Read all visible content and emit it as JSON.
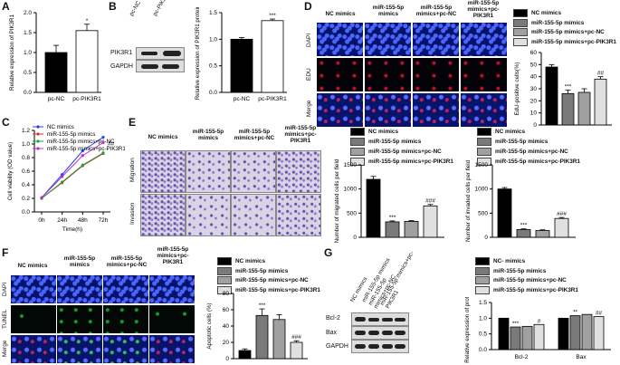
{
  "panels": {
    "A": {
      "label": "A",
      "ylabel": "Relative expression of PIK3R1",
      "categories": [
        "pc-NC",
        "pc-PIK3R1"
      ],
      "sig": "*"
    },
    "B": {
      "label": "B",
      "lanes": [
        "pc-NC",
        "pc-PIK3R1"
      ],
      "rows": [
        "PIK3R1",
        "GAPDH"
      ],
      "ylabel": "Relative expression of PIK3R1 protein",
      "categories": [
        "pc-NC",
        "pc-PIK3R1"
      ],
      "sig": "***"
    },
    "C": {
      "label": "C",
      "ylabel": "Cell viability (OD value)",
      "xlabel": "Time(h)",
      "sig": "##"
    },
    "D": {
      "label": "D",
      "columns": [
        "NC mimics",
        "miR-155-5p mimics",
        "miR-155-5p mimics+pc-NC",
        "miR-155-5p mimics+pc-PIK3R1"
      ],
      "rows": [
        "DAPI",
        "EDU",
        "Merge"
      ],
      "ylabel": "EdU-positive cells(%)",
      "sigs": [
        "",
        "***",
        "",
        "##"
      ]
    },
    "E": {
      "label": "E",
      "columns": [
        "NC mimics",
        "miR-155-5p mimics",
        "miR-155-5p mimics+pc-NC",
        "miR-155-5p mimics+pc-PIK3R1"
      ],
      "rows": [
        "Migration",
        "Invasion"
      ],
      "ylabel1": "Number of migrated cells per field",
      "ylabel2": "Number of invaded cells per field",
      "sigs": [
        "",
        "***",
        "",
        "###"
      ]
    },
    "F": {
      "label": "F",
      "columns": [
        "NC mimics",
        "miR-155-5p mimics",
        "miR-155-5p mimics+pc-NC",
        "miR-155-5p mimics+pc-PIK3R1"
      ],
      "rows": [
        "DAPI",
        "TUNEL",
        "Merge"
      ],
      "ylabel": "Apoptotic cells (%)",
      "sigs": [
        "",
        "***",
        "",
        "###"
      ]
    },
    "G": {
      "label": "G",
      "lanes": [
        "NC mimics",
        "miR-155-5p mimics",
        "miR-155-5p mimics+pc-NC",
        "miR-155-5p mimics+pc-PIK3R1"
      ],
      "rows": [
        "Bcl-2",
        "Bax",
        "GAPDH"
      ],
      "ylabel": "Relative expression of protein",
      "sigs_bcl2": [
        "",
        "***",
        "",
        "#"
      ],
      "sigs_bax": [
        "",
        "**",
        "",
        "##"
      ]
    }
  },
  "legend4": [
    "NC mimics",
    "miR-155-5p mimics",
    "miR-155-5p mimics+pc-NC",
    "miR-155-5p mimics+pc-PIK3R1"
  ],
  "legendG": [
    "NC- mimics",
    "miR-155-5p mimics",
    "miR-155-5p mimics+pc-NC",
    "miR-155-5p mimics+pc-PIK3R1"
  ],
  "colors": {
    "g1": "#000000",
    "g2": "#7a7a7a",
    "g3": "#a0a0a0",
    "g4": "#e0e0e0",
    "lineNC": "#2040ff",
    "lineMiR": "#e03020",
    "linePcNC": "#20a040",
    "linePcPIK": "#c030c0"
  },
  "chart_data": [
    {
      "type": "bar",
      "panel": "A",
      "categories": [
        "pc-NC",
        "pc-PIK3R1"
      ],
      "values": [
        1.0,
        1.55
      ],
      "errors": [
        0.18,
        0.16
      ],
      "ylabel": "Relative expression of PIK3R1",
      "ylim": [
        0,
        2.0
      ],
      "yticks": [
        0.0,
        0.5,
        1.0,
        1.5,
        2.0
      ]
    },
    {
      "type": "bar",
      "panel": "B",
      "categories": [
        "pc-NC",
        "pc-PIK3R1"
      ],
      "values": [
        1.0,
        1.35
      ],
      "errors": [
        0.03,
        0.03
      ],
      "ylabel": "Relative expression of PIK3R1 protein",
      "ylim": [
        0,
        1.5
      ],
      "yticks": [
        0.0,
        0.5,
        1.0,
        1.5
      ]
    },
    {
      "type": "line",
      "panel": "C",
      "x": [
        "0h",
        "24h",
        "48h",
        "72h"
      ],
      "ylim": [
        0,
        1.2
      ],
      "yticks": [
        0.0,
        0.2,
        0.4,
        0.6,
        0.8,
        1.0,
        1.2
      ],
      "series": [
        {
          "name": "NC mimics",
          "values": [
            0.21,
            0.55,
            0.9,
            1.1
          ]
        },
        {
          "name": "miR-155-5p mimics",
          "values": [
            0.2,
            0.43,
            0.68,
            0.86
          ]
        },
        {
          "name": "miR-155-5p mimics+pc-NC",
          "values": [
            0.2,
            0.44,
            0.69,
            0.87
          ]
        },
        {
          "name": "miR-155-5p mimics+pc-PIK3R1",
          "values": [
            0.21,
            0.52,
            0.83,
            1.02
          ]
        }
      ],
      "ylabel": "Cell viability (OD value)",
      "xlabel": "Time(h)"
    },
    {
      "type": "bar",
      "panel": "D",
      "categories": [
        "NC mimics",
        "miR-155-5p mimics",
        "miR-155-5p mimics+pc-NC",
        "miR-155-5p mimics+pc-PIK3R1"
      ],
      "values": [
        48,
        26,
        27,
        38
      ],
      "errors": [
        2,
        3,
        3,
        2
      ],
      "ylim": [
        0,
        60
      ],
      "yticks": [
        0,
        10,
        20,
        30,
        40,
        50,
        60
      ],
      "ylabel": "EdU-positive cells(%)"
    },
    {
      "type": "bar",
      "panel": "E1",
      "categories": [
        "NC mimics",
        "miR-155-5p mimics",
        "miR-155-5p mimics+pc-NC",
        "miR-155-5p mimics+pc-PIK3R1"
      ],
      "values": [
        1200,
        320,
        330,
        650
      ],
      "errors": [
        60,
        20,
        15,
        30
      ],
      "ylim": [
        0,
        1500
      ],
      "yticks": [
        0,
        500,
        1000,
        1500
      ],
      "ylabel": "Number of migrated cells per field"
    },
    {
      "type": "bar",
      "panel": "E2",
      "categories": [
        "NC mimics",
        "miR-155-5p mimics",
        "miR-155-5p mimics+pc-NC",
        "miR-155-5p mimics+pc-PIK3R1"
      ],
      "values": [
        1000,
        160,
        140,
        390
      ],
      "errors": [
        30,
        15,
        15,
        20
      ],
      "ylim": [
        0,
        1500
      ],
      "yticks": [
        0,
        500,
        1000,
        1500
      ],
      "ylabel": "Number of invaded cells per field"
    },
    {
      "type": "bar",
      "panel": "F",
      "categories": [
        "NC mimics",
        "miR-155-5p mimics",
        "miR-155-5p mimics+pc-NC",
        "miR-155-5p mimics+pc-PIK3R1"
      ],
      "values": [
        10,
        53,
        48,
        20
      ],
      "errors": [
        2,
        8,
        6,
        2
      ],
      "ylim": [
        0,
        80
      ],
      "yticks": [
        0,
        20,
        40,
        60,
        80
      ],
      "ylabel": "Apoptotic cells (%)"
    },
    {
      "type": "bar",
      "panel": "G",
      "categories": [
        "Bcl-2",
        "Bax"
      ],
      "series": [
        {
          "name": "NC- mimics",
          "values": [
            1.0,
            1.0
          ]
        },
        {
          "name": "miR-155-5p mimics",
          "values": [
            0.72,
            1.08
          ]
        },
        {
          "name": "miR-155-5p mimics+pc-NC",
          "values": [
            0.74,
            1.12
          ]
        },
        {
          "name": "miR-155-5p mimics+pc-PIK3R1",
          "values": [
            0.8,
            1.05
          ]
        }
      ],
      "ylim": [
        0,
        1.5
      ],
      "yticks": [
        0.0,
        0.5,
        1.0,
        1.5
      ],
      "ylabel": "Relative expression of protein"
    }
  ]
}
